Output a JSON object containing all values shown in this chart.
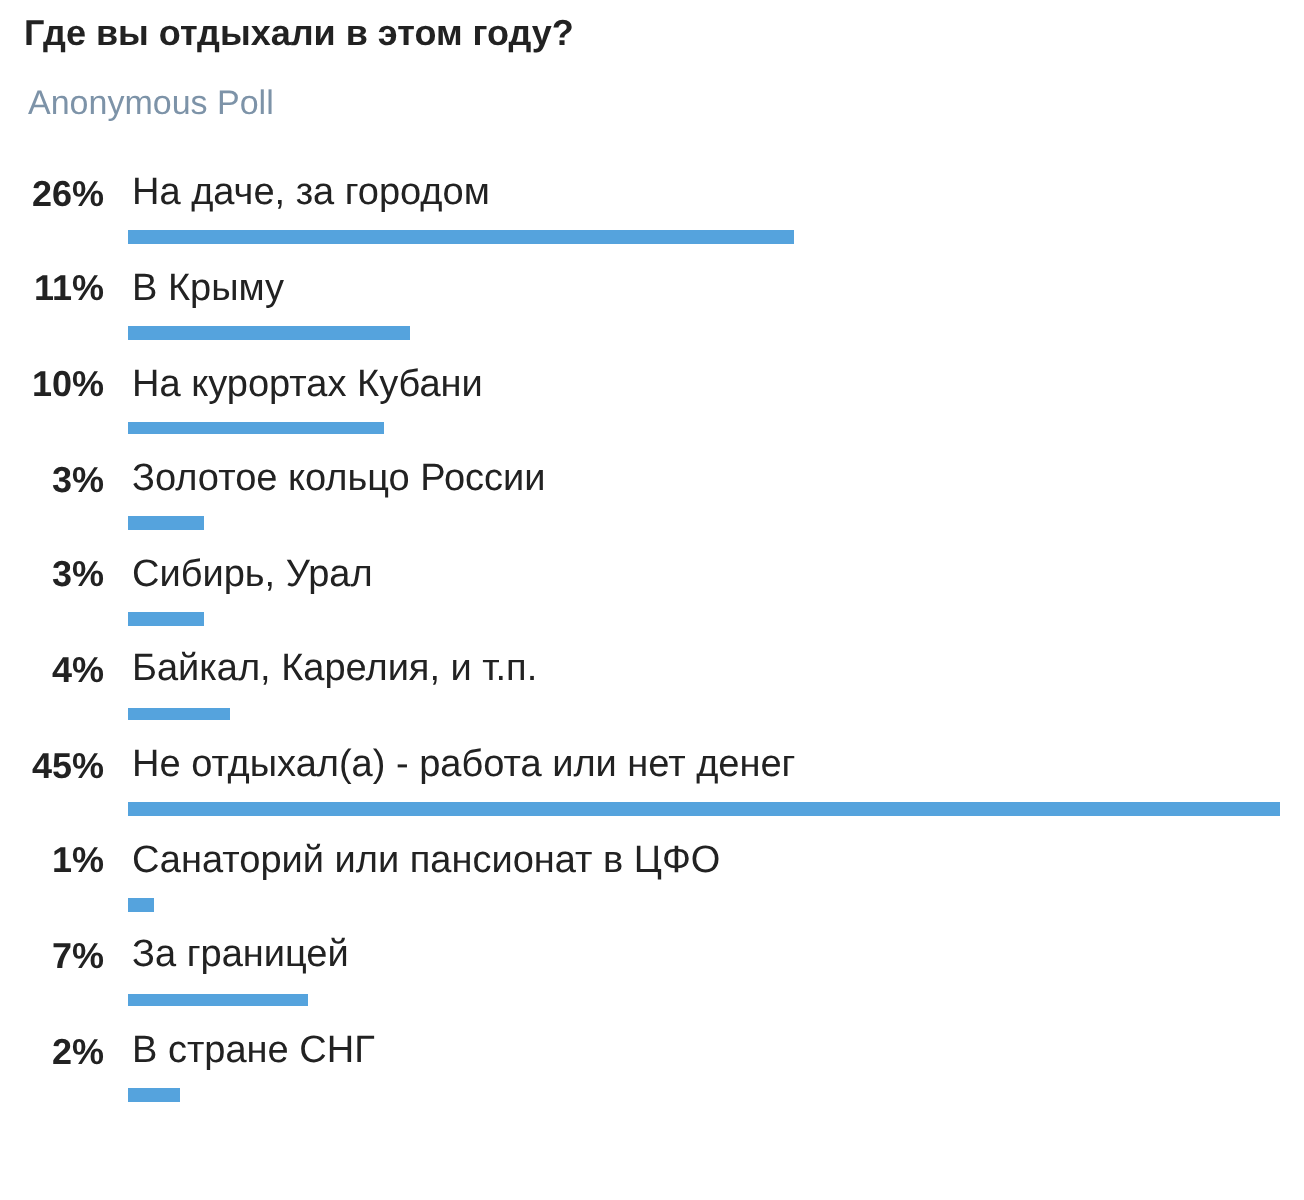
{
  "chart_data": {
    "type": "bar",
    "orientation": "horizontal",
    "title": "Где вы отдыхали в этом году?",
    "subtitle": "Anonymous Poll",
    "categories": [
      "На даче, за городом",
      "В Крыму",
      "На курортах Кубани",
      "Золотое кольцо России",
      "Сибирь, Урал",
      "Байкал, Карелия, и т.п.",
      "Не отдыхал(а) - работа или нет денег",
      "Санаторий или пансионат в ЦФО",
      "За границей",
      "В стране СНГ"
    ],
    "values": [
      26,
      11,
      10,
      3,
      3,
      4,
      45,
      1,
      7,
      2
    ],
    "value_labels": [
      "26%",
      "11%",
      "10%",
      "3%",
      "3%",
      "4%",
      "45%",
      "1%",
      "7%",
      "2%"
    ],
    "color": "#55a3dd",
    "xlim": [
      0,
      45
    ],
    "legend": false
  }
}
